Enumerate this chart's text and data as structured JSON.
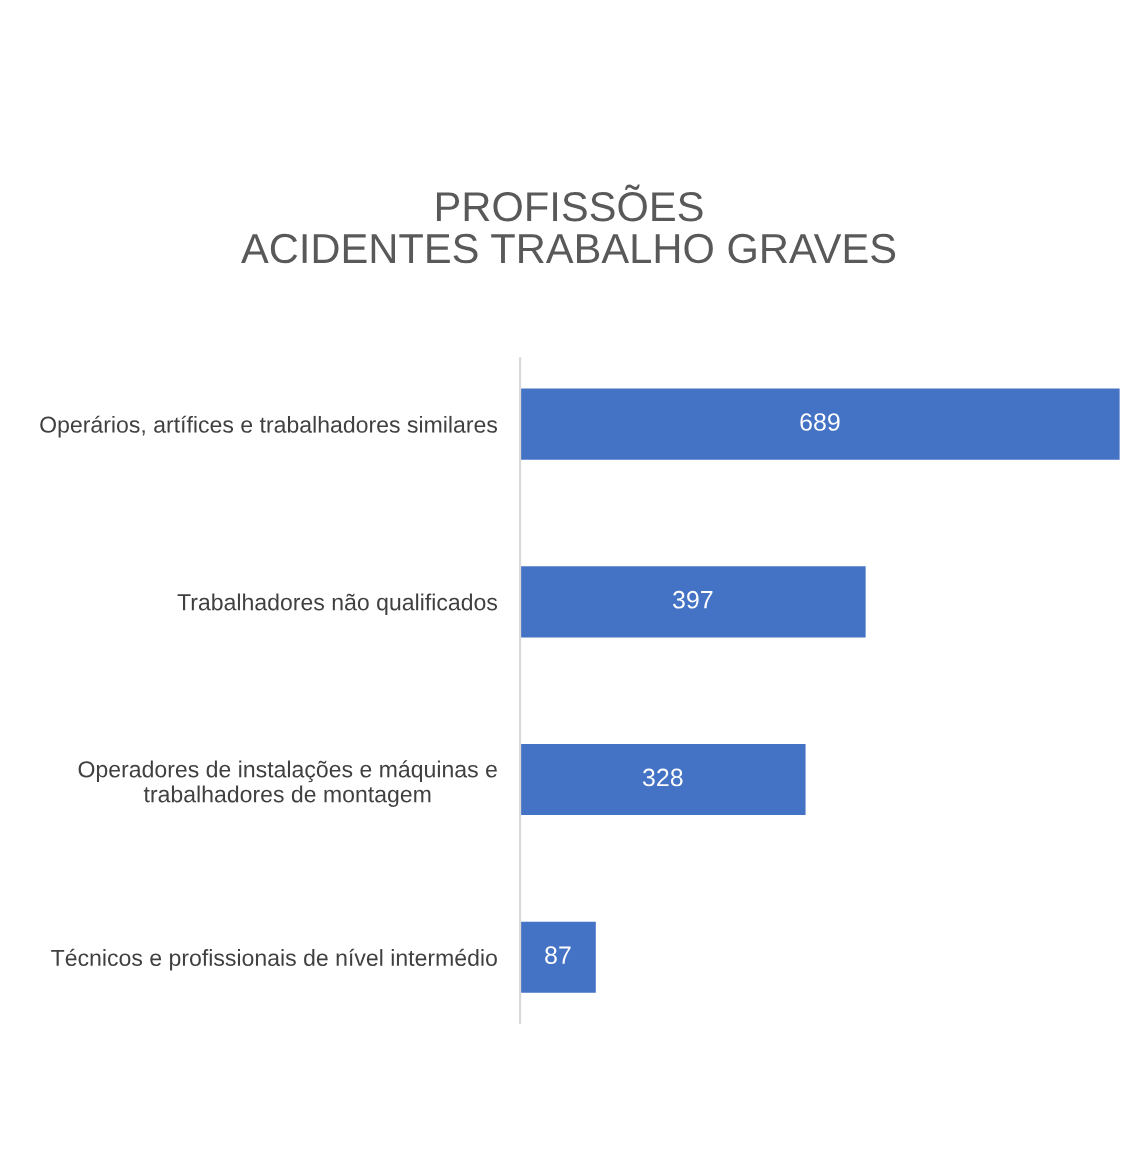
{
  "chart_data": {
    "type": "bar",
    "orientation": "horizontal",
    "title": "PROFISSÕES\nACIDENTES TRABALHO GRAVES",
    "categories": [
      "Operários, artífices e trabalhadores similares",
      "Trabalhadores não qualificados",
      "Operadores de instalações e máquinas e\ntrabalhadores de montagem",
      "Técnicos e profissionais de nível intermédio"
    ],
    "values": [
      689,
      397,
      328,
      87
    ],
    "color": "#4472c4",
    "data_labels": true,
    "legend": false
  }
}
